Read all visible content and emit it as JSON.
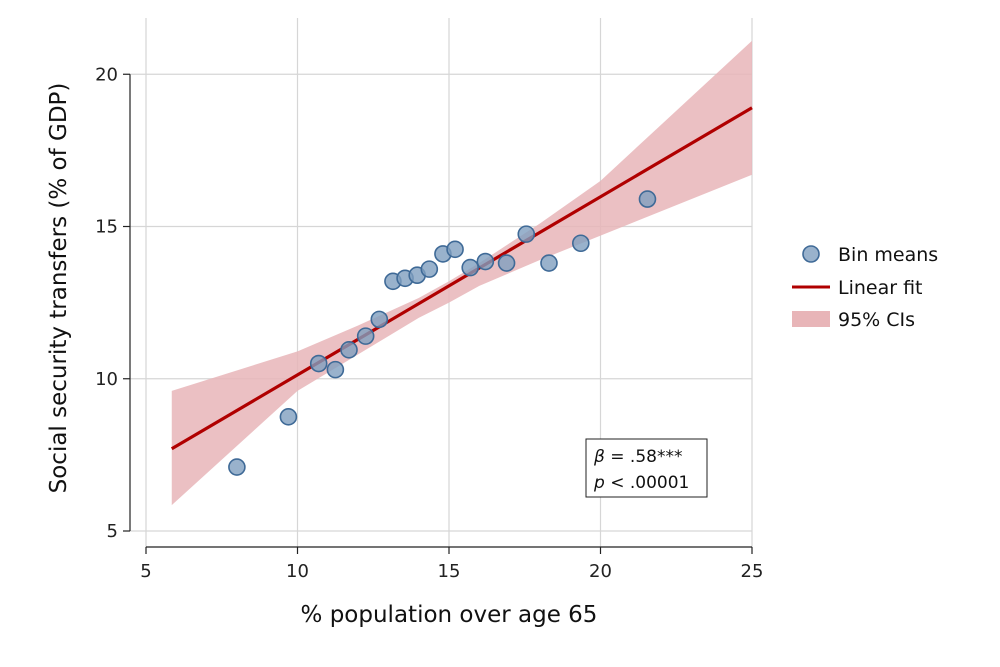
{
  "chart_data": {
    "type": "scatter",
    "xlabel": "% population over age 65",
    "ylabel": "Social security transfers (% of GDP)",
    "xlim": [
      5,
      25
    ],
    "ylim": [
      5,
      21.5
    ],
    "x_ticks": [
      5,
      10,
      15,
      20,
      25
    ],
    "y_ticks": [
      5,
      10,
      15,
      20
    ],
    "grid": true,
    "legend_position": "right",
    "series": [
      {
        "name": "Bin means",
        "kind": "points",
        "color": "#7f9fbf",
        "edge_color": "#3f6a97",
        "points": [
          {
            "x": 8.0,
            "y": 7.1
          },
          {
            "x": 9.7,
            "y": 8.75
          },
          {
            "x": 10.7,
            "y": 10.5
          },
          {
            "x": 11.25,
            "y": 10.3
          },
          {
            "x": 11.7,
            "y": 10.95
          },
          {
            "x": 12.25,
            "y": 11.4
          },
          {
            "x": 12.7,
            "y": 11.95
          },
          {
            "x": 13.15,
            "y": 13.2
          },
          {
            "x": 13.55,
            "y": 13.3
          },
          {
            "x": 13.95,
            "y": 13.4
          },
          {
            "x": 14.35,
            "y": 13.6
          },
          {
            "x": 14.8,
            "y": 14.1
          },
          {
            "x": 15.2,
            "y": 14.25
          },
          {
            "x": 15.7,
            "y": 13.65
          },
          {
            "x": 16.2,
            "y": 13.85
          },
          {
            "x": 16.9,
            "y": 13.8
          },
          {
            "x": 17.55,
            "y": 14.75
          },
          {
            "x": 18.3,
            "y": 13.8
          },
          {
            "x": 19.35,
            "y": 14.45
          },
          {
            "x": 21.55,
            "y": 15.9
          }
        ]
      },
      {
        "name": "Linear fit",
        "kind": "line",
        "color": "#b00000",
        "x": [
          5.85,
          25.0
        ],
        "y": [
          7.7,
          18.9
        ]
      },
      {
        "name": "95% CIs",
        "kind": "band",
        "color": "#e8b5b8",
        "x": [
          5.85,
          10,
          12,
          14,
          15,
          16,
          18,
          20,
          25
        ],
        "lower": [
          5.85,
          9.6,
          10.8,
          12.0,
          12.5,
          13.05,
          13.9,
          14.7,
          16.7
        ],
        "upper": [
          9.6,
          10.9,
          11.75,
          12.65,
          13.2,
          13.8,
          15.1,
          16.5,
          21.1
        ]
      }
    ],
    "annotation": {
      "beta_symbol": "β",
      "beta_text": " = .58***",
      "p_symbol": "p",
      "p_text": " < .00001"
    }
  }
}
